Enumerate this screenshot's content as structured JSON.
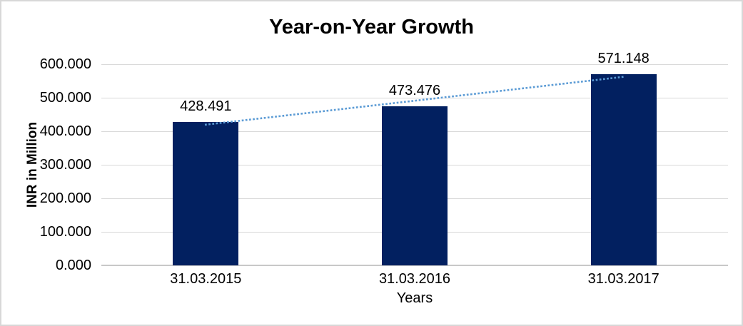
{
  "chart": {
    "colors": {
      "bar": "#022060",
      "trendline": "#5B9BD5",
      "gridline": "#d9d9d9",
      "axis_line": "#c8c8c8",
      "text": "#000000"
    }
  },
  "chart_data": {
    "type": "bar",
    "title": "Year-on-Year Growth",
    "xlabel": "Years",
    "ylabel": "INR in Million",
    "categories": [
      "31.03.2015",
      "31.03.2016",
      "31.03.2017"
    ],
    "values": [
      428.491,
      473.476,
      571.148
    ],
    "data_labels": [
      "428.491",
      "473.476",
      "571.148"
    ],
    "ylim": [
      0,
      600
    ],
    "ytick_step": 100,
    "ytick_labels": [
      "600.000",
      "500.000",
      "400.000",
      "300.000",
      "200.000",
      "100.000",
      "0.000"
    ],
    "grid": true,
    "legend": false,
    "trendline": {
      "type": "linear",
      "style": "dotted",
      "color": "#5B9BD5",
      "start_value": 419.71,
      "end_value": 562.37
    }
  }
}
